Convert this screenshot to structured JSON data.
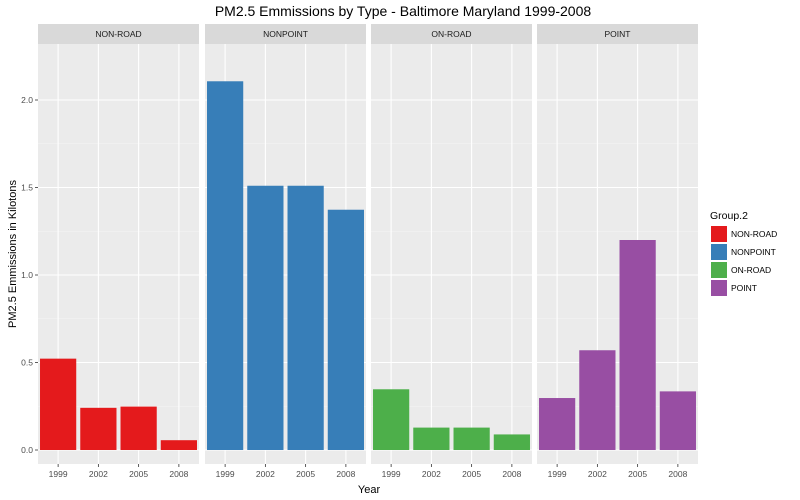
{
  "chart_data": {
    "type": "bar",
    "title": "PM2.5 Emmissions by Type - Baltimore Maryland 1999-2008",
    "xlabel": "Year",
    "ylabel": "PM2.5 Emmissions in Kilotons",
    "ylim": [
      -0.08,
      2.32
    ],
    "yticks": [
      0.0,
      0.5,
      1.0,
      1.5,
      2.0
    ],
    "ytick_labels": [
      "0.0",
      "0.5",
      "1.0",
      "1.5",
      "2.0"
    ],
    "categories": [
      "1999",
      "2002",
      "2005",
      "2008"
    ],
    "grid": true,
    "legend": {
      "title": "Group.2",
      "position": "right",
      "entries": [
        "NON-ROAD",
        "NONPOINT",
        "ON-ROAD",
        "POINT"
      ]
    },
    "series": [
      {
        "name": "NON-ROAD",
        "color": "#e41a1c",
        "values": [
          0.522,
          0.241,
          0.248,
          0.056
        ]
      },
      {
        "name": "NONPOINT",
        "color": "#377eb8",
        "values": [
          2.107,
          1.51,
          1.51,
          1.373
        ]
      },
      {
        "name": "ON-ROAD",
        "color": "#4daf4a",
        "values": [
          0.347,
          0.128,
          0.128,
          0.089
        ]
      },
      {
        "name": "POINT",
        "color": "#984ea3",
        "values": [
          0.297,
          0.57,
          1.2,
          0.335
        ]
      }
    ]
  }
}
